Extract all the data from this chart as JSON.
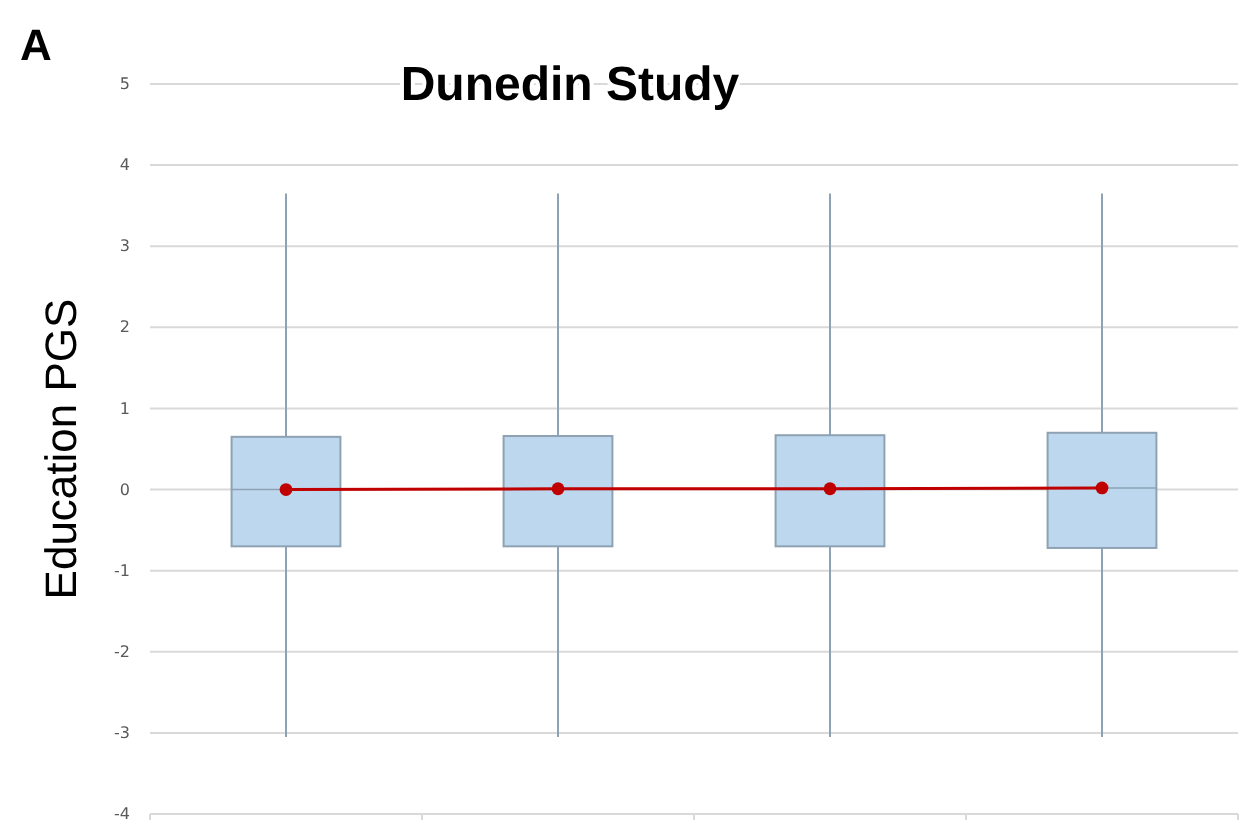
{
  "chart_data": {
    "type": "box",
    "title": "Dunedin Study",
    "ylabel": "Education PGS",
    "annotations": [
      "A"
    ],
    "categories": [
      null,
      null,
      null,
      null
    ],
    "boxes": [
      {
        "low": -3.05,
        "q1": -0.7,
        "median": 0,
        "q3": 0.65,
        "high": 3.65
      },
      {
        "low": -3.05,
        "q1": -0.7,
        "median": 0,
        "q3": 0.66,
        "high": 3.65
      },
      {
        "low": -3.05,
        "q1": -0.7,
        "median": 0,
        "q3": 0.67,
        "high": 3.65
      },
      {
        "low": -3.05,
        "q1": -0.72,
        "median": 0.02,
        "q3": 0.7,
        "high": 3.65
      }
    ],
    "color": "#bdd7ee",
    "series": [
      {
        "type": "line",
        "color": "#c00000",
        "values": [
          0,
          0.01,
          0.01,
          0.02
        ]
      }
    ],
    "marker": "circle",
    "ylim": [
      -4,
      5
    ],
    "yticks": [
      -4,
      -3,
      -2,
      -1,
      0,
      1,
      2,
      3,
      4,
      5
    ],
    "grid": "y"
  }
}
